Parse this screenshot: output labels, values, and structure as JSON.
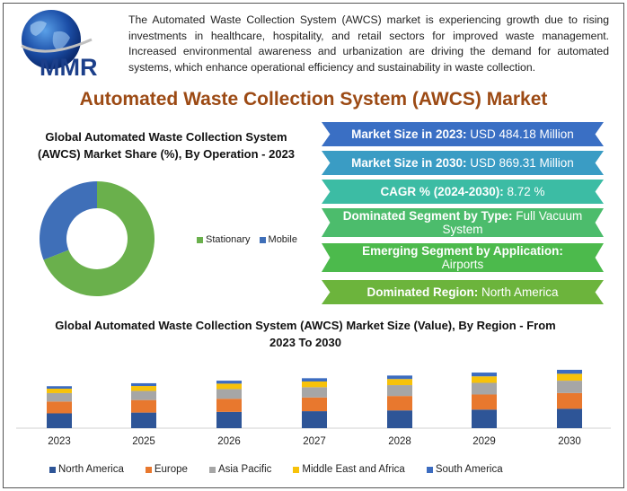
{
  "intro": "The Automated Waste Collection System (AWCS) market is experiencing growth due to rising investments in healthcare, hospitality, and retail sectors for improved waste management. Increased environmental awareness and urbanization are driving the demand for automated systems, which enhance operational efficiency and sustainability in waste collection.",
  "logo": {
    "text": "MMR"
  },
  "main_title": "Automated Waste Collection System (AWCS) Market",
  "banners": [
    {
      "label": "Market Size in 2023:",
      "value": "USD 484.18 Million",
      "color": "#3a6fc4"
    },
    {
      "label": "Market Size in 2030:",
      "value": "USD 869.31 Million",
      "color": "#3a9cc4"
    },
    {
      "label": "CAGR % (2024-2030):",
      "value": "8.72 %",
      "color": "#3cbca4"
    },
    {
      "label": "Dominated Segment by Type:",
      "value": "Full Vacuum System",
      "color": "#4cbc6c"
    },
    {
      "label": "Emerging Segment by Application:",
      "value": "Airports",
      "color": "#4cba4c"
    },
    {
      "label": "Dominated Region:",
      "value": "North America",
      "color": "#6cb43c"
    }
  ],
  "chart_data": [
    {
      "type": "pie",
      "title": "Global Automated Waste Collection System (AWCS) Market Share (%), By Operation - 2023",
      "categories": [
        "Stationary",
        "Mobile"
      ],
      "values": [
        69,
        31
      ],
      "colors": [
        "#6ab04c",
        "#3f6fb8"
      ],
      "donut": true,
      "legend": "right"
    },
    {
      "type": "bar",
      "stacked": true,
      "title": "Global Automated Waste Collection System (AWCS) Market Size (Value), By Region - From 2023 To 2030",
      "categories": [
        "2023",
        "2025",
        "2026",
        "2027",
        "2028",
        "2029",
        "2030"
      ],
      "series": [
        {
          "name": "North America",
          "color": "#2e5597",
          "values": [
            150,
            158,
            165,
            172,
            180,
            188,
            196
          ]
        },
        {
          "name": "Europe",
          "color": "#e8782e",
          "values": [
            120,
            127,
            133,
            139,
            146,
            153,
            160
          ]
        },
        {
          "name": "Asia Pacific",
          "color": "#a6a6a6",
          "values": [
            85,
            92,
            98,
            104,
            110,
            118,
            125
          ]
        },
        {
          "name": "Middle East and Africa",
          "color": "#f7c20a",
          "values": [
            45,
            50,
            55,
            58,
            62,
            66,
            70
          ]
        },
        {
          "name": "South America",
          "color": "#3c6cc0",
          "values": [
            25,
            28,
            30,
            33,
            35,
            38,
            40
          ]
        }
      ],
      "legend": "bottom"
    }
  ]
}
